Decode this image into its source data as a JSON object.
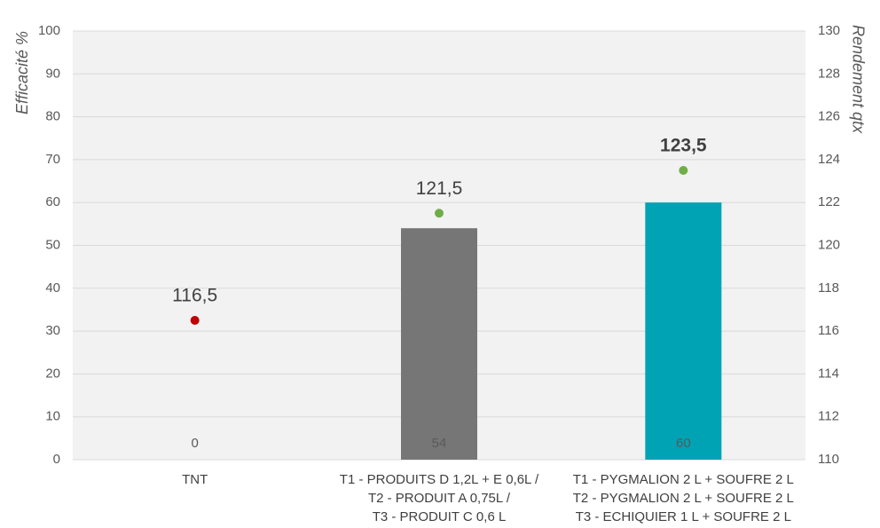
{
  "chart_data": {
    "type": "bar",
    "categories": [
      [
        "TNT"
      ],
      [
        "T1 - PRODUITS D 1,2L + E 0,6L  /",
        "T2 - PRODUIT A 0,75L  /",
        "T3 - PRODUIT C 0,6 L"
      ],
      [
        "T1 - PYGMALION 2 L + SOUFRE 2 L",
        "T2 - PYGMALION 2 L + SOUFRE 2 L",
        "T3 - ECHIQUIER 1 L + SOUFRE 2 L"
      ]
    ],
    "series": [
      {
        "type": "bar",
        "colors": [
          "#767676",
          "#767676",
          "#00a3b4"
        ],
        "label_color": "#ffffff",
        "values": [
          0,
          54,
          60
        ]
      },
      {
        "type": "scatter",
        "axis": "y2",
        "colors": [
          "#c00000",
          "#70ad47",
          "#70ad47"
        ],
        "values": [
          116.5,
          121.5,
          123.5
        ],
        "value_labels": [
          "116,5",
          "121,5",
          "123,5"
        ],
        "bold": [
          false,
          false,
          true
        ]
      }
    ],
    "ylabel": "Efficacité %",
    "y2label": "Rendement qtx",
    "ylim": [
      0,
      100
    ],
    "yticks": [
      0,
      10,
      20,
      30,
      40,
      50,
      60,
      70,
      80,
      90,
      100
    ],
    "y2lim": [
      110,
      130
    ],
    "y2ticks": [
      110,
      112,
      114,
      116,
      118,
      120,
      122,
      124,
      126,
      128,
      130
    ],
    "grid": true
  }
}
